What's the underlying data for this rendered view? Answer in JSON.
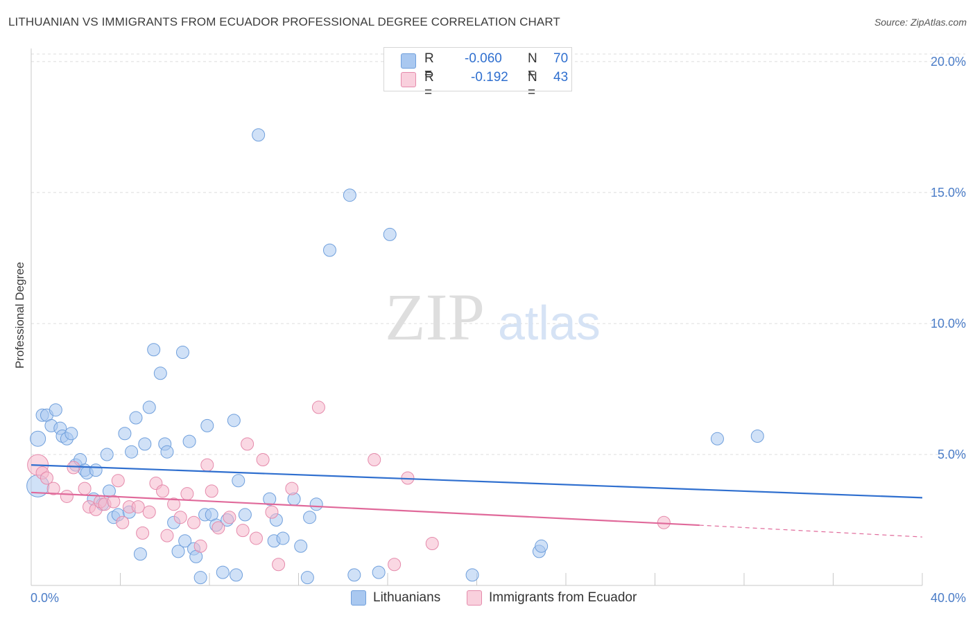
{
  "title": "LITHUANIAN VS IMMIGRANTS FROM ECUADOR PROFESSIONAL DEGREE CORRELATION CHART",
  "source": "Source: ZipAtlas.com",
  "watermark": {
    "zip": "ZIP",
    "atlas": "atlas"
  },
  "legend": {
    "rows": [
      {
        "r_label": "R =",
        "r_value": "-0.060",
        "n_label": "N =",
        "n_value": "70",
        "color": "#a9c8f0"
      },
      {
        "r_label": "R =",
        "r_value": "-0.192",
        "n_label": "N =",
        "n_value": "43",
        "color": "#f5b8cc"
      }
    ]
  },
  "bottom_legend": [
    {
      "label": "Lithuanians",
      "color": "#a9c8f0"
    },
    {
      "label": "Immigrants from Ecuador",
      "color": "#f5b8cc"
    }
  ],
  "chart_data": {
    "type": "scatter",
    "title": "LITHUANIAN VS IMMIGRANTS FROM ECUADOR PROFESSIONAL DEGREE CORRELATION CHART",
    "xlabel": "",
    "ylabel": "Professional Degree",
    "xlim": [
      0,
      40
    ],
    "ylim": [
      0,
      20.5
    ],
    "x_tick_labels": [
      "0.0%",
      "40.0%"
    ],
    "y_ticks": [
      5,
      10,
      15,
      20
    ],
    "y_tick_labels": [
      "5.0%",
      "10.0%",
      "15.0%",
      "20.0%"
    ],
    "grid": true,
    "series": [
      {
        "name": "Lithuanians",
        "color": "#a9c8f0",
        "stroke": "#6f9fdc",
        "trend": {
          "x": [
            0,
            40
          ],
          "y": [
            4.6,
            3.35
          ],
          "color": "#2f6fcf"
        },
        "points": [
          [
            0.3,
            3.8,
            16
          ],
          [
            0.3,
            5.6,
            11
          ],
          [
            0.5,
            6.5,
            9
          ],
          [
            0.7,
            6.5,
            9
          ],
          [
            0.9,
            6.1,
            9
          ],
          [
            1.1,
            6.7,
            9
          ],
          [
            1.3,
            6.0,
            9
          ],
          [
            1.4,
            5.7,
            9
          ],
          [
            1.6,
            5.6,
            9
          ],
          [
            1.8,
            5.8,
            9
          ],
          [
            2.0,
            4.6,
            9
          ],
          [
            2.2,
            4.8,
            9
          ],
          [
            2.4,
            4.4,
            9
          ],
          [
            2.5,
            4.3,
            9
          ],
          [
            2.9,
            4.4,
            9
          ],
          [
            2.8,
            3.3,
            9
          ],
          [
            3.2,
            3.1,
            9
          ],
          [
            3.4,
            5.0,
            9
          ],
          [
            3.5,
            3.6,
            9
          ],
          [
            3.7,
            2.6,
            9
          ],
          [
            3.9,
            2.7,
            9
          ],
          [
            4.2,
            5.8,
            9
          ],
          [
            4.4,
            2.8,
            9
          ],
          [
            4.5,
            5.1,
            9
          ],
          [
            4.7,
            6.4,
            9
          ],
          [
            4.9,
            1.2,
            9
          ],
          [
            5.1,
            5.4,
            9
          ],
          [
            5.3,
            6.8,
            9
          ],
          [
            5.5,
            9.0,
            9
          ],
          [
            5.8,
            8.1,
            9
          ],
          [
            6.0,
            5.4,
            9
          ],
          [
            6.1,
            5.1,
            9
          ],
          [
            6.4,
            2.4,
            9
          ],
          [
            6.6,
            1.3,
            9
          ],
          [
            6.8,
            8.9,
            9
          ],
          [
            6.9,
            1.7,
            9
          ],
          [
            7.1,
            5.5,
            9
          ],
          [
            7.3,
            1.4,
            9
          ],
          [
            7.4,
            1.1,
            9
          ],
          [
            7.6,
            0.3,
            9
          ],
          [
            7.8,
            2.7,
            9
          ],
          [
            7.9,
            6.1,
            9
          ],
          [
            8.1,
            2.7,
            9
          ],
          [
            8.3,
            2.3,
            9
          ],
          [
            8.6,
            0.5,
            9
          ],
          [
            8.8,
            2.5,
            9
          ],
          [
            9.1,
            6.3,
            9
          ],
          [
            9.2,
            0.4,
            9
          ],
          [
            9.3,
            4.0,
            9
          ],
          [
            9.6,
            2.7,
            9
          ],
          [
            10.2,
            17.2,
            9
          ],
          [
            10.7,
            3.3,
            9
          ],
          [
            10.9,
            1.7,
            9
          ],
          [
            11.3,
            1.8,
            9
          ],
          [
            11.8,
            3.3,
            9
          ],
          [
            12.1,
            1.5,
            9
          ],
          [
            12.4,
            0.3,
            9
          ],
          [
            12.5,
            2.6,
            9
          ],
          [
            12.8,
            3.1,
            9
          ],
          [
            13.4,
            12.8,
            9
          ],
          [
            14.3,
            14.9,
            9
          ],
          [
            14.5,
            0.4,
            9
          ],
          [
            15.6,
            0.5,
            9
          ],
          [
            16.1,
            13.4,
            9
          ],
          [
            19.8,
            0.4,
            9
          ],
          [
            22.8,
            1.3,
            9
          ],
          [
            22.9,
            1.5,
            9
          ],
          [
            30.8,
            5.6,
            9
          ],
          [
            32.6,
            5.7,
            9
          ],
          [
            11.0,
            2.5,
            9
          ]
        ]
      },
      {
        "name": "Immigrants from Ecuador",
        "color": "#f5b8cc",
        "stroke": "#e58aab",
        "trend": {
          "x": [
            0,
            30
          ],
          "y": [
            3.55,
            2.3
          ],
          "dash_to": [
            40,
            1.85
          ],
          "color": "#e0699a"
        },
        "points": [
          [
            0.3,
            4.6,
            15
          ],
          [
            0.5,
            4.3,
            9
          ],
          [
            0.7,
            4.1,
            9
          ],
          [
            1.0,
            3.7,
            9
          ],
          [
            1.6,
            3.4,
            9
          ],
          [
            1.9,
            4.5,
            9
          ],
          [
            2.4,
            3.7,
            9
          ],
          [
            2.6,
            3.0,
            9
          ],
          [
            2.9,
            2.9,
            9
          ],
          [
            3.1,
            3.2,
            9
          ],
          [
            3.3,
            3.1,
            9
          ],
          [
            3.7,
            3.2,
            9
          ],
          [
            3.9,
            4.0,
            9
          ],
          [
            4.1,
            2.4,
            9
          ],
          [
            4.4,
            3.0,
            9
          ],
          [
            4.8,
            3.0,
            9
          ],
          [
            5.0,
            2.0,
            9
          ],
          [
            5.3,
            2.8,
            9
          ],
          [
            5.6,
            3.9,
            9
          ],
          [
            5.9,
            3.6,
            9
          ],
          [
            6.1,
            1.9,
            9
          ],
          [
            6.4,
            3.1,
            9
          ],
          [
            6.7,
            2.6,
            9
          ],
          [
            7.0,
            3.5,
            9
          ],
          [
            7.3,
            2.4,
            9
          ],
          [
            7.6,
            1.5,
            9
          ],
          [
            7.9,
            4.6,
            9
          ],
          [
            8.1,
            3.6,
            9
          ],
          [
            8.4,
            2.2,
            9
          ],
          [
            8.9,
            2.6,
            9
          ],
          [
            9.5,
            2.1,
            9
          ],
          [
            9.7,
            5.4,
            9
          ],
          [
            10.1,
            1.8,
            9
          ],
          [
            10.4,
            4.8,
            9
          ],
          [
            10.8,
            2.8,
            9
          ],
          [
            11.1,
            0.8,
            9
          ],
          [
            11.7,
            3.7,
            9
          ],
          [
            12.9,
            6.8,
            9
          ],
          [
            15.4,
            4.8,
            9
          ],
          [
            16.3,
            0.8,
            9
          ],
          [
            16.9,
            4.1,
            9
          ],
          [
            18.0,
            1.6,
            9
          ],
          [
            28.4,
            2.4,
            9
          ]
        ]
      }
    ]
  }
}
